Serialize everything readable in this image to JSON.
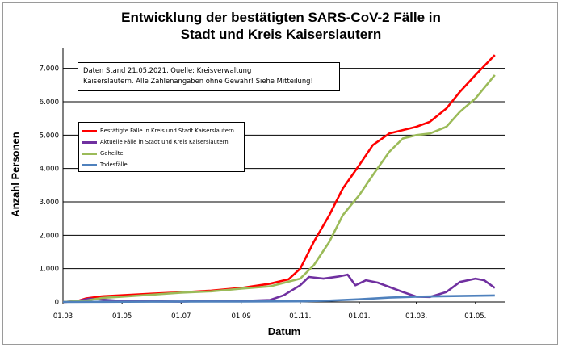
{
  "chart_data": {
    "type": "line",
    "title_line1": "Entwicklung der bestätigten SARS-CoV-2 Fälle in",
    "title_line2": "Stadt und Kreis Kaiserslautern",
    "xlabel": "Datum",
    "ylabel": "Anzahl Personen",
    "note_line1": "Daten Stand 21.05.2021, Quelle: Kreisverwaltung",
    "note_line2": "Kaiserslautern. Alle Zahlenangaben ohne Gewähr! Siehe Mitteilung!",
    "x_tick_labels": [
      "01.03",
      "01.05",
      "01.07",
      "01.09",
      "01.11.",
      "01.01.",
      "01.03.",
      "01.05."
    ],
    "x_ticks": [
      "2020-03-01",
      "2020-05-01",
      "2020-07-01",
      "2020-09-01",
      "2020-11-01",
      "2021-01-01",
      "2021-03-01",
      "2021-05-01"
    ],
    "x_range": [
      "2020-03-01",
      "2021-06-01"
    ],
    "y_tick_labels": [
      "0",
      "1.000",
      "2.000",
      "3.000",
      "4.000",
      "5.000",
      "6.000",
      "7.000"
    ],
    "y_ticks": [
      0,
      1000,
      2000,
      3000,
      4000,
      5000,
      6000,
      7000
    ],
    "ylim": [
      0,
      7500
    ],
    "grid": "horizontal",
    "legend_position": "left",
    "series": [
      {
        "name": "Bestätigte Fälle in Kreis und Stadt Kaiserslautern",
        "color": "#ff0000",
        "points": [
          [
            "2020-03-01",
            0
          ],
          [
            "2020-03-15",
            20
          ],
          [
            "2020-03-25",
            110
          ],
          [
            "2020-04-10",
            170
          ],
          [
            "2020-05-01",
            200
          ],
          [
            "2020-06-01",
            250
          ],
          [
            "2020-07-01",
            290
          ],
          [
            "2020-08-01",
            340
          ],
          [
            "2020-09-01",
            420
          ],
          [
            "2020-10-01",
            550
          ],
          [
            "2020-10-20",
            680
          ],
          [
            "2020-11-01",
            1000
          ],
          [
            "2020-11-15",
            1800
          ],
          [
            "2020-12-01",
            2600
          ],
          [
            "2020-12-15",
            3400
          ],
          [
            "2021-01-01",
            4100
          ],
          [
            "2021-01-15",
            4700
          ],
          [
            "2021-02-01",
            5050
          ],
          [
            "2021-03-01",
            5250
          ],
          [
            "2021-03-15",
            5400
          ],
          [
            "2021-04-01",
            5800
          ],
          [
            "2021-04-15",
            6300
          ],
          [
            "2021-05-01",
            6800
          ],
          [
            "2021-05-21",
            7400
          ]
        ]
      },
      {
        "name": "Aktuelle Fälle in Stadt und Kreis Kaiserslautern",
        "color": "#7030a0",
        "points": [
          [
            "2020-03-01",
            0
          ],
          [
            "2020-03-15",
            20
          ],
          [
            "2020-03-28",
            100
          ],
          [
            "2020-04-10",
            70
          ],
          [
            "2020-05-01",
            30
          ],
          [
            "2020-06-01",
            20
          ],
          [
            "2020-07-01",
            10
          ],
          [
            "2020-08-01",
            40
          ],
          [
            "2020-09-01",
            30
          ],
          [
            "2020-10-01",
            60
          ],
          [
            "2020-10-15",
            200
          ],
          [
            "2020-11-01",
            500
          ],
          [
            "2020-11-10",
            750
          ],
          [
            "2020-11-25",
            700
          ],
          [
            "2020-12-10",
            760
          ],
          [
            "2020-12-20",
            820
          ],
          [
            "2020-12-28",
            500
          ],
          [
            "2021-01-08",
            650
          ],
          [
            "2021-01-20",
            580
          ],
          [
            "2021-02-01",
            450
          ],
          [
            "2021-02-15",
            300
          ],
          [
            "2021-03-01",
            160
          ],
          [
            "2021-03-15",
            150
          ],
          [
            "2021-04-01",
            300
          ],
          [
            "2021-04-15",
            600
          ],
          [
            "2021-05-01",
            700
          ],
          [
            "2021-05-10",
            650
          ],
          [
            "2021-05-21",
            420
          ]
        ]
      },
      {
        "name": "Geheilte",
        "color": "#9bbb59",
        "points": [
          [
            "2020-03-01",
            0
          ],
          [
            "2020-03-25",
            40
          ],
          [
            "2020-04-10",
            120
          ],
          [
            "2020-05-01",
            160
          ],
          [
            "2020-06-01",
            220
          ],
          [
            "2020-07-01",
            280
          ],
          [
            "2020-08-01",
            320
          ],
          [
            "2020-09-01",
            400
          ],
          [
            "2020-10-01",
            470
          ],
          [
            "2020-11-01",
            700
          ],
          [
            "2020-11-15",
            1100
          ],
          [
            "2020-12-01",
            1800
          ],
          [
            "2020-12-15",
            2600
          ],
          [
            "2021-01-01",
            3200
          ],
          [
            "2021-01-15",
            3800
          ],
          [
            "2021-02-01",
            4500
          ],
          [
            "2021-02-15",
            4900
          ],
          [
            "2021-03-01",
            5000
          ],
          [
            "2021-03-15",
            5050
          ],
          [
            "2021-04-01",
            5250
          ],
          [
            "2021-04-15",
            5700
          ],
          [
            "2021-05-01",
            6100
          ],
          [
            "2021-05-21",
            6800
          ]
        ]
      },
      {
        "name": "Todesfälle",
        "color": "#4f81bd",
        "points": [
          [
            "2020-03-01",
            0
          ],
          [
            "2020-04-01",
            5
          ],
          [
            "2020-06-01",
            10
          ],
          [
            "2020-09-01",
            15
          ],
          [
            "2020-11-01",
            20
          ],
          [
            "2020-12-01",
            40
          ],
          [
            "2021-01-01",
            80
          ],
          [
            "2021-02-01",
            130
          ],
          [
            "2021-03-01",
            160
          ],
          [
            "2021-04-01",
            175
          ],
          [
            "2021-05-21",
            195
          ]
        ]
      }
    ]
  }
}
